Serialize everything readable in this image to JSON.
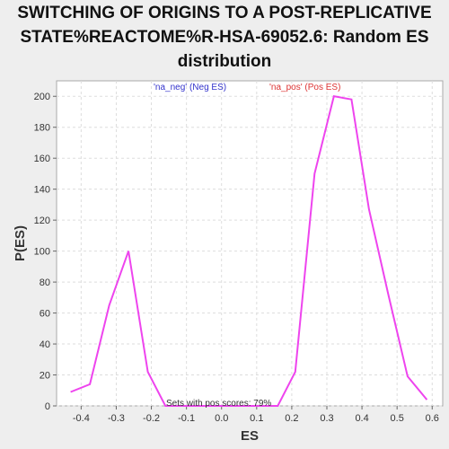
{
  "chart_data": {
    "type": "line",
    "title_lines": [
      "SWITCHING OF ORIGINS TO A POST-REPLICATIVE",
      "STATE%REACTOME%R-HSA-69052.6: Random ES",
      "distribution"
    ],
    "xlabel": "ES",
    "ylabel": "P(ES)",
    "xlim": [
      -0.47,
      0.63
    ],
    "ylim": [
      0,
      210
    ],
    "xticks": [
      "-0.4",
      "-0.3",
      "-0.2",
      "-0.1",
      "0.0",
      "0.1",
      "0.2",
      "0.3",
      "0.4",
      "0.5",
      "0.6"
    ],
    "yticks": [
      "0",
      "20",
      "40",
      "60",
      "80",
      "100",
      "120",
      "140",
      "160",
      "180",
      "200"
    ],
    "grid": true,
    "legend": {
      "neg": "'na_neg' (Neg ES)",
      "pos": "'na_pos' (Pos ES)"
    },
    "annotation": "Sets with pos scores: 79%",
    "series": [
      {
        "color": "#ee44ee",
        "x": [
          -0.43,
          -0.375,
          -0.32,
          -0.265,
          -0.21,
          -0.16,
          0.16,
          0.21,
          0.265,
          0.32,
          0.37,
          0.42,
          0.475,
          0.53,
          0.585
        ],
        "y": [
          9,
          14,
          65,
          100,
          22,
          0,
          0,
          22,
          150,
          200,
          198,
          127,
          72,
          19,
          4
        ]
      }
    ],
    "colors": {
      "neg": "#3333cc",
      "pos": "#dd3333",
      "line": "#ee44ee"
    }
  }
}
